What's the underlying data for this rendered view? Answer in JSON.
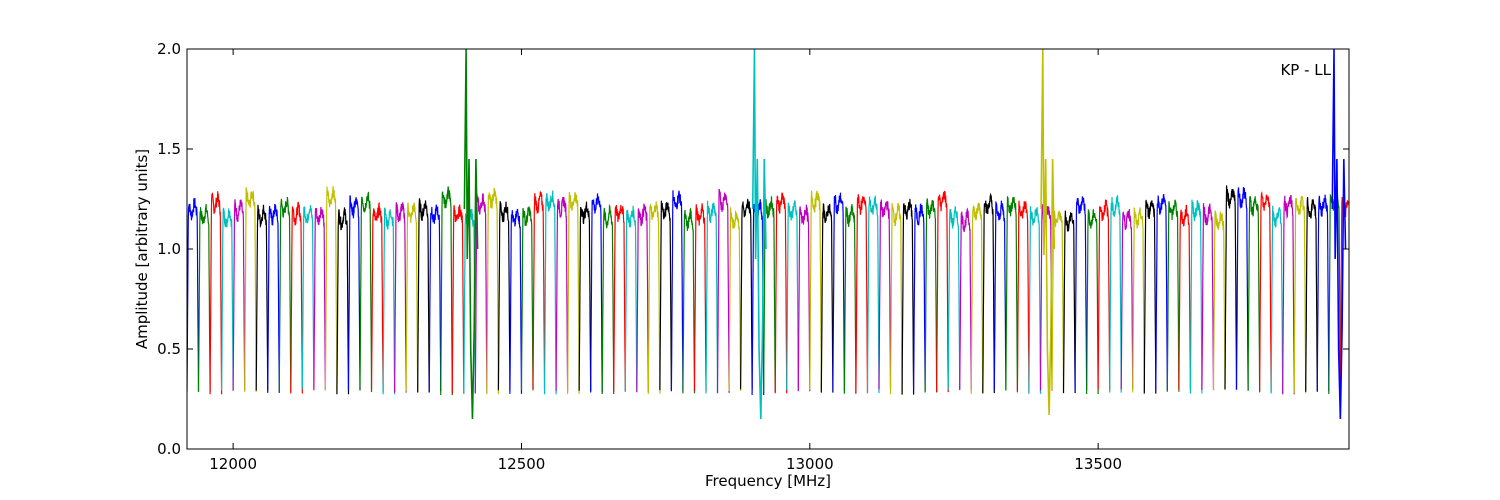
{
  "chart_data": {
    "type": "line",
    "title": "",
    "xlabel": "Frequency [MHz]",
    "ylabel": "Amplitude [arbitrary units]",
    "xlim": [
      11920,
      13935
    ],
    "ylim": [
      0.0,
      2.0
    ],
    "xticks": [
      12000,
      12500,
      13000,
      13500
    ],
    "yticks": [
      0.0,
      0.5,
      1.0,
      1.5,
      2.0
    ],
    "xtick_labels": [
      "12000",
      "12500",
      "13000",
      "13500"
    ],
    "ytick_labels": [
      "0.0",
      "0.5",
      "1.0",
      "1.5",
      "2.0"
    ],
    "annotation": "KP - LL",
    "grid": false,
    "colors": [
      "#0000ff",
      "#008000",
      "#ff0000",
      "#00bfbf",
      "#bf00bf",
      "#bfbf00",
      "#000000"
    ],
    "channel_start_mhz": 11920,
    "channel_spacing_mhz": 20,
    "channel_count": 101,
    "passband_level": 1.2,
    "edge_minimum": 0.3,
    "spikes": [
      {
        "x": 12405,
        "y": 2.0,
        "min": 0.15,
        "color": "#008000"
      },
      {
        "x": 12905,
        "y": 2.0,
        "min": 0.15,
        "color": "#00bfbf"
      },
      {
        "x": 13405,
        "y": 2.0,
        "min": 0.17,
        "color": "#bfbf00"
      },
      {
        "x": 13910,
        "y": 2.0,
        "min": 0.15,
        "color": "#0000ff"
      }
    ]
  }
}
